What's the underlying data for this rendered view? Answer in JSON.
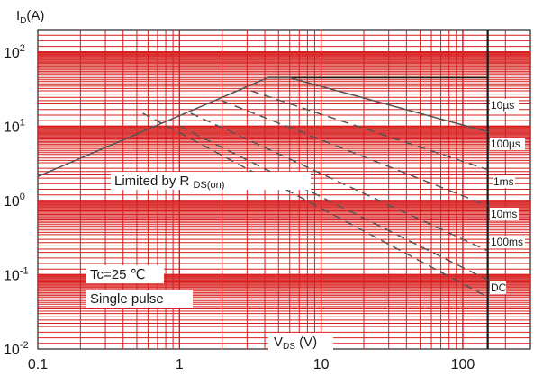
{
  "chart_data": {
    "type": "line",
    "title": "",
    "ylabel": {
      "main": "I",
      "sub": "D",
      "unit": "(A)"
    },
    "xlabel": {
      "main": "V",
      "sub": "DS",
      "unit": " (V)"
    },
    "x_scale": "log",
    "y_scale": "log",
    "xlim": [
      0.1,
      300
    ],
    "ylim": [
      0.01,
      200
    ],
    "x_ticks": [
      {
        "value": 0.1,
        "label": "0.1"
      },
      {
        "value": 1,
        "label": "1"
      },
      {
        "value": 10,
        "label": "10"
      },
      {
        "value": 100,
        "label": "100"
      }
    ],
    "y_ticks": [
      {
        "value": 100,
        "base": "10",
        "exp": "2"
      },
      {
        "value": 10,
        "base": "10",
        "exp": "1"
      },
      {
        "value": 1,
        "base": "10",
        "exp": "0"
      },
      {
        "value": 0.1,
        "base": "10",
        "exp": "-1"
      },
      {
        "value": 0.01,
        "base": "10",
        "exp": "-2"
      }
    ],
    "grid": true,
    "grid_color": "#d81e1e",
    "line_color": "#555555",
    "max_vds": 150,
    "max_id": 45,
    "rdson_limit": {
      "label_main": "Limited by R",
      "label_sub": "DS(on)",
      "points": [
        [
          0.1,
          2.1
        ],
        [
          4.2,
          45
        ]
      ]
    },
    "series": [
      {
        "name": "10µs",
        "points": [
          [
            4.2,
            45
          ],
          [
            6.0,
            45
          ],
          [
            150,
            8.4
          ]
        ]
      },
      {
        "name": "100µs",
        "points": [
          [
            3.2,
            30
          ],
          [
            150,
            2.6
          ]
        ]
      },
      {
        "name": "1ms",
        "points": [
          [
            2.0,
            22
          ],
          [
            150,
            0.85
          ]
        ]
      },
      {
        "name": "10ms",
        "points": [
          [
            1.2,
            15
          ],
          [
            150,
            0.21
          ]
        ]
      },
      {
        "name": "100ms",
        "points": [
          [
            1.0,
            10
          ],
          [
            150,
            0.085
          ]
        ]
      },
      {
        "name": "DC",
        "points": [
          [
            0.55,
            15
          ],
          [
            150,
            0.05
          ]
        ]
      }
    ],
    "annotations": [
      "Tc=25 ℃",
      "Single pulse"
    ]
  }
}
